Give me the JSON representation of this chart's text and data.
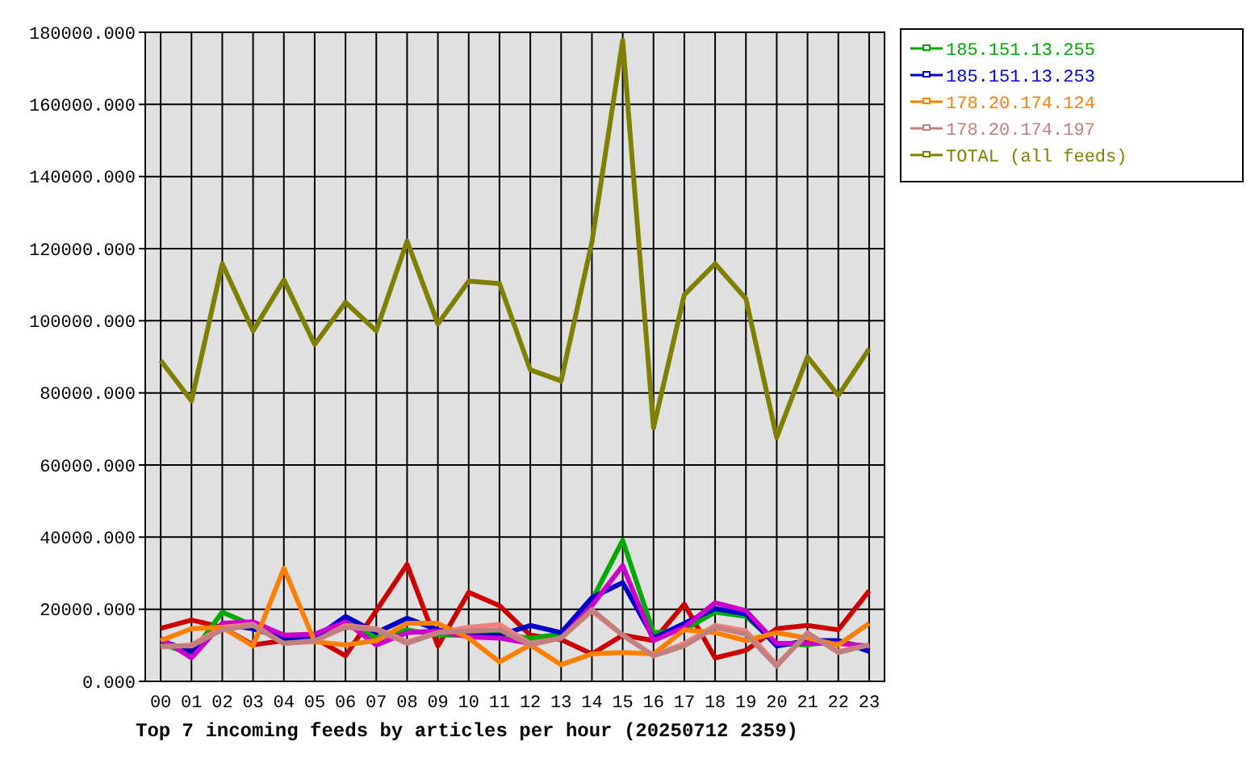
{
  "chart_data": {
    "type": "line",
    "title": "Top 7 incoming feeds by articles per hour (20250712 2359)",
    "categories": [
      "00",
      "01",
      "02",
      "03",
      "04",
      "05",
      "06",
      "07",
      "08",
      "09",
      "10",
      "11",
      "12",
      "13",
      "14",
      "15",
      "16",
      "17",
      "18",
      "19",
      "20",
      "21",
      "22",
      "23"
    ],
    "ylim": [
      0,
      180000
    ],
    "yticks": [
      {
        "value": 0,
        "label": "0.000"
      },
      {
        "value": 20000,
        "label": "20000.000"
      },
      {
        "value": 40000,
        "label": "40000.000"
      },
      {
        "value": 60000,
        "label": "60000.000"
      },
      {
        "value": 80000,
        "label": "80000.000"
      },
      {
        "value": 100000,
        "label": "100000.000"
      },
      {
        "value": 120000,
        "label": "120000.000"
      },
      {
        "value": 140000,
        "label": "140000.000"
      },
      {
        "value": 160000,
        "label": "160000.000"
      },
      {
        "value": 180000,
        "label": "180000.000"
      }
    ],
    "grid": true,
    "legend": "top right",
    "marker": "none",
    "line_style": "solid",
    "series": [
      {
        "color": "#cc0000",
        "values": [
          14700,
          17000,
          15000,
          10100,
          11300,
          12000,
          7100,
          19600,
          32400,
          9800,
          24700,
          21000,
          12800,
          11600,
          7600,
          12800,
          11300,
          21400,
          6500,
          8600,
          14600,
          15500,
          14300,
          25100
        ]
      },
      {
        "name": "185.151.13.255",
        "color": "#00aa00",
        "values": [
          10500,
          7600,
          19200,
          15500,
          12000,
          12000,
          16500,
          12000,
          14300,
          12800,
          12800,
          13100,
          12000,
          13100,
          22500,
          39100,
          13500,
          14300,
          19200,
          18000,
          10500,
          10100,
          11300,
          9100
        ]
      },
      {
        "name": "185.151.13.253",
        "color": "#0000cc",
        "values": [
          11300,
          8300,
          15800,
          14600,
          12000,
          12000,
          18000,
          13500,
          17500,
          14300,
          12500,
          12800,
          15500,
          13500,
          23200,
          27400,
          12000,
          16100,
          20200,
          18700,
          9800,
          11300,
          11300,
          8300
        ]
      },
      {
        "color": "#cc00cc",
        "values": [
          12000,
          6500,
          16100,
          16500,
          12800,
          13100,
          16500,
          10100,
          13500,
          14000,
          12300,
          12000,
          10500,
          12000,
          21000,
          32100,
          11300,
          15000,
          21800,
          19600,
          10500,
          10500,
          10500,
          9800
        ]
      },
      {
        "color": "#f08080",
        "values": [
          9500,
          10100,
          15000,
          15800,
          10500,
          11000,
          15500,
          14600,
          11000,
          13500,
          15000,
          15800,
          10500,
          12000,
          19500,
          12800,
          7100,
          10500,
          15500,
          14000,
          4600,
          13100,
          8300,
          10100
        ]
      },
      {
        "name": "178.20.174.124",
        "color": "#ff8000",
        "values": [
          11300,
          14600,
          15000,
          9800,
          31400,
          11000,
          10100,
          11300,
          16100,
          16100,
          12000,
          5400,
          10100,
          4600,
          7600,
          8000,
          7600,
          14300,
          13500,
          11300,
          13500,
          12000,
          10100,
          16100
        ]
      },
      {
        "name": "178.20.174.197",
        "color": "#c08080",
        "values": [
          9800,
          9800,
          14300,
          15500,
          10500,
          11300,
          15000,
          14300,
          10500,
          13500,
          14000,
          14300,
          10100,
          12000,
          19900,
          12800,
          7100,
          9800,
          15000,
          13100,
          4200,
          13500,
          8000,
          10100
        ]
      },
      {
        "name": "TOTAL (all feeds)",
        "color": "#808000",
        "values": [
          89000,
          77800,
          115800,
          97200,
          111300,
          93400,
          105100,
          97200,
          122100,
          99100,
          111000,
          110300,
          86400,
          83300,
          121800,
          177800,
          70300,
          107200,
          115800,
          106100,
          67600,
          90000,
          79300,
          92200
        ]
      }
    ]
  }
}
